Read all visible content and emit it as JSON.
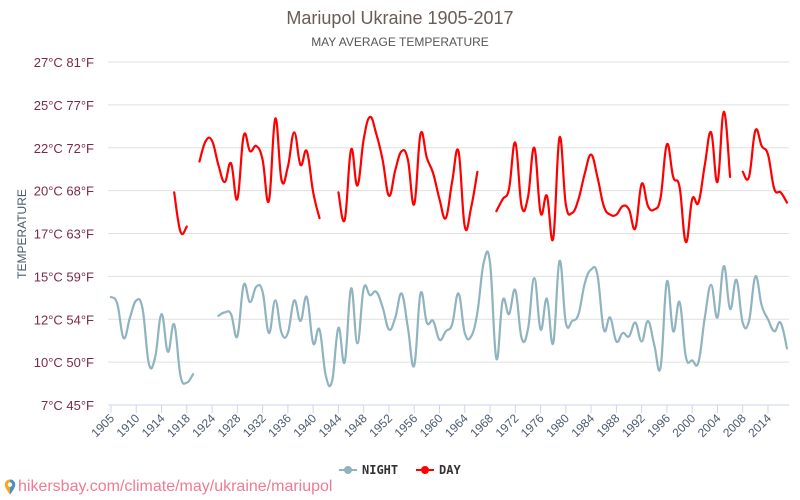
{
  "chart_data": {
    "type": "line",
    "title": "Mariupol Ukraine 1905-2017",
    "subtitle": "MAY AVERAGE TEMPERATURE",
    "ylabel": "TEMPERATURE",
    "xlabel": "",
    "ylim": [
      7.5,
      27.5
    ],
    "grid": true,
    "legend_position": "bottom-center",
    "y_ticks": [
      {
        "value": 27.5,
        "label": "27°C 81°F"
      },
      {
        "value": 25,
        "label": "25°C 77°F"
      },
      {
        "value": 22.5,
        "label": "22°C 72°F"
      },
      {
        "value": 20,
        "label": "20°C 68°F"
      },
      {
        "value": 17.5,
        "label": "17°C 63°F"
      },
      {
        "value": 15,
        "label": "15°C 59°F"
      },
      {
        "value": 12.5,
        "label": "12°C 54°F"
      },
      {
        "value": 10,
        "label": "10°C 50°F"
      },
      {
        "value": 7.5,
        "label": "7°C 45°F"
      }
    ],
    "x_tick_labels": [
      "1905",
      "1910",
      "1914",
      "1918",
      "1924",
      "1928",
      "1932",
      "1936",
      "1940",
      "1944",
      "1948",
      "1952",
      "1956",
      "1960",
      "1964",
      "1968",
      "1972",
      "1976",
      "1980",
      "1984",
      "1988",
      "1992",
      "1996",
      "2000",
      "2004",
      "2008",
      "2014"
    ],
    "x_tick_every": 4,
    "categories": [
      1905,
      1906,
      1907,
      1909,
      1910,
      1911,
      1912,
      1913,
      1914,
      1915,
      1916,
      1917,
      1918,
      1920,
      1922,
      1923,
      1924,
      1925,
      1926,
      1927,
      1928,
      1929,
      1930,
      1931,
      1932,
      1933,
      1934,
      1935,
      1936,
      1937,
      1938,
      1939,
      1940,
      1941,
      1942,
      1943,
      1944,
      1945,
      1946,
      1947,
      1948,
      1949,
      1950,
      1951,
      1952,
      1953,
      1954,
      1955,
      1956,
      1957,
      1958,
      1959,
      1960,
      1961,
      1962,
      1963,
      1964,
      1965,
      1966,
      1967,
      1968,
      1969,
      1970,
      1971,
      1972,
      1973,
      1974,
      1975,
      1976,
      1977,
      1978,
      1979,
      1980,
      1981,
      1982,
      1983,
      1984,
      1985,
      1986,
      1987,
      1988,
      1989,
      1990,
      1991,
      1992,
      1993,
      1994,
      1995,
      1996,
      1997,
      1998,
      1999,
      2000,
      2001,
      2002,
      2003,
      2004,
      2005,
      2006,
      2007,
      2008,
      2009,
      2011,
      2013,
      2014,
      2015,
      2016,
      2017
    ],
    "series": [
      {
        "name": "NIGHT",
        "color": "#8fb3bf",
        "values": [
          13.8,
          13.4,
          11.4,
          12.6,
          13.6,
          13.1,
          9.9,
          10.3,
          12.8,
          10.6,
          12.2,
          9.2,
          8.8,
          9.3,
          null,
          null,
          null,
          12.7,
          12.9,
          12.8,
          11.5,
          14.5,
          13.5,
          14.4,
          14.1,
          11.7,
          13.6,
          11.7,
          11.7,
          13.6,
          12.4,
          13.8,
          11.1,
          11.9,
          9.2,
          8.9,
          12.0,
          10.0,
          14.3,
          11.1,
          14.3,
          13.9,
          14.1,
          13.2,
          11.9,
          12.6,
          14.0,
          12.0,
          9.8,
          14.0,
          12.3,
          12.4,
          11.3,
          11.8,
          12.2,
          14.0,
          11.7,
          11.5,
          12.9,
          15.8,
          15.8,
          10.2,
          13.6,
          12.8,
          14.2,
          11.4,
          11.9,
          14.9,
          11.9,
          13.7,
          11.1,
          15.9,
          12.3,
          12.4,
          12.8,
          14.6,
          15.4,
          15.1,
          11.9,
          12.6,
          11.2,
          11.7,
          11.5,
          12.3,
          11.2,
          12.4,
          11.0,
          9.7,
          14.7,
          11.8,
          13.5,
          10.3,
          10.1,
          10.0,
          12.6,
          14.5,
          12.6,
          15.6,
          13.1,
          14.8,
          12.3,
          12.4,
          15.0,
          13.3,
          12.5,
          11.8,
          12.3,
          10.8
        ]
      },
      {
        "name": "DAY",
        "color": "#ff0000",
        "values": [
          null,
          null,
          null,
          null,
          null,
          null,
          null,
          null,
          null,
          null,
          19.9,
          17.6,
          17.9,
          null,
          21.7,
          22.9,
          22.9,
          21.5,
          20.5,
          21.6,
          19.5,
          23.2,
          22.3,
          22.6,
          21.8,
          19.4,
          24.2,
          20.6,
          21.4,
          23.4,
          21.5,
          22.3,
          19.9,
          18.4,
          null,
          null,
          19.9,
          18.3,
          22.4,
          20.3,
          23.0,
          24.3,
          23.3,
          21.8,
          19.7,
          21.2,
          22.3,
          21.8,
          19.2,
          23.3,
          21.9,
          21.0,
          19.5,
          18.4,
          20.5,
          22.3,
          17.9,
          19.0,
          21.1,
          null,
          null,
          18.8,
          19.5,
          20.1,
          22.8,
          19.1,
          19.6,
          22.5,
          18.7,
          19.7,
          17.2,
          23.1,
          19.2,
          18.7,
          19.5,
          21.0,
          22.1,
          20.8,
          19.1,
          18.6,
          18.6,
          19.1,
          18.9,
          17.8,
          20.4,
          19.1,
          18.9,
          19.6,
          22.7,
          20.8,
          20.2,
          17.0,
          19.5,
          19.3,
          21.5,
          23.4,
          20.5,
          24.6,
          20.8,
          null,
          21.1,
          20.8,
          23.5,
          22.6,
          22.1,
          20.1,
          19.9,
          19.3
        ]
      }
    ]
  },
  "footer": {
    "url_text": "hikersbay.com/climate/may/ukraine/mariupol",
    "icon": "location-pin-icon"
  },
  "colors": {
    "grid": "#e0e0e0",
    "axis": "#ccd6eb",
    "footer": "#f07a95"
  }
}
